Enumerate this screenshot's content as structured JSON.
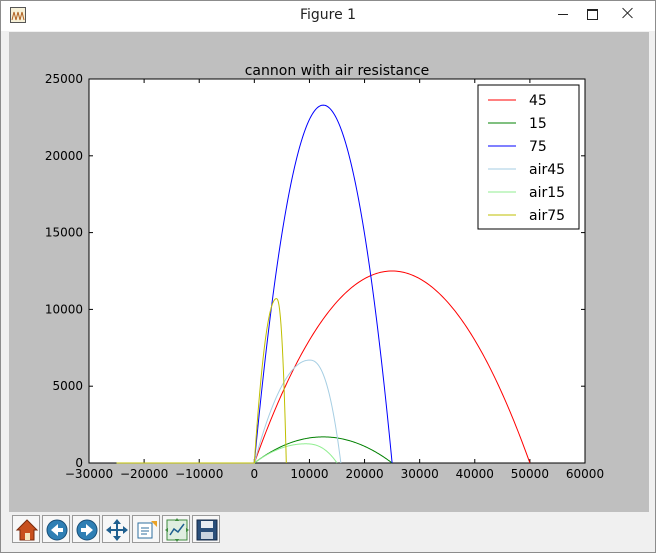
{
  "window": {
    "title": "Figure 1"
  },
  "toolbar": {
    "buttons": [
      {
        "name": "home-button",
        "icon": "home-icon"
      },
      {
        "name": "back-button",
        "icon": "arrow-left-icon"
      },
      {
        "name": "forward-button",
        "icon": "arrow-right-icon"
      },
      {
        "name": "pan-button",
        "icon": "move-arrows-icon"
      },
      {
        "name": "zoom-button",
        "icon": "zoom-rect-icon"
      },
      {
        "name": "subplots-button",
        "icon": "subplots-icon"
      },
      {
        "name": "save-button",
        "icon": "floppy-disk-icon"
      }
    ]
  },
  "chart_data": {
    "type": "line",
    "title": "cannon with air resistance",
    "xlabel": "",
    "ylabel": "",
    "xlim": [
      -30000,
      60000
    ],
    "ylim": [
      0,
      25000
    ],
    "xticks": [
      -30000,
      -20000,
      -10000,
      0,
      10000,
      20000,
      30000,
      40000,
      50000,
      60000
    ],
    "yticks": [
      0,
      5000,
      10000,
      15000,
      20000,
      25000
    ],
    "xtick_labels": [
      "−30000",
      "−20000",
      "−10000",
      "0",
      "10000",
      "20000",
      "30000",
      "40000",
      "50000",
      "60000"
    ],
    "ytick_labels": [
      "0",
      "5000",
      "10000",
      "15000",
      "20000",
      "25000"
    ],
    "grid": false,
    "legend_position": "top-right",
    "series": [
      {
        "name": "45",
        "color": "#ff0000",
        "shape": "parabola",
        "x_start": 0,
        "x_end": 50000,
        "y_max": 12500,
        "x_min_line": -25000
      },
      {
        "name": "15",
        "color": "#008000",
        "shape": "parabola",
        "x_start": 0,
        "x_end": 25000,
        "y_max": 1700,
        "x_min_line": -25000
      },
      {
        "name": "75",
        "color": "#0000ff",
        "shape": "parabola",
        "x_start": 0,
        "x_end": 25000,
        "y_max": 23300,
        "x_min_line": -25000
      },
      {
        "name": "air45",
        "color": "#a6cee3",
        "shape": "drag",
        "x_start": 0,
        "x_end": 15700,
        "x_peak": 10000,
        "y_max": 6700,
        "x_min_line": -25000
      },
      {
        "name": "air15",
        "color": "#90ee90",
        "shape": "drag",
        "x_start": 0,
        "x_end": 15000,
        "x_peak": 9300,
        "y_max": 1250,
        "x_min_line": -25000
      },
      {
        "name": "air75",
        "color": "#bfbf00",
        "shape": "drag",
        "x_start": 0,
        "x_end": 5800,
        "x_peak": 4000,
        "y_max": 10700,
        "x_min_line": -25000
      }
    ]
  }
}
